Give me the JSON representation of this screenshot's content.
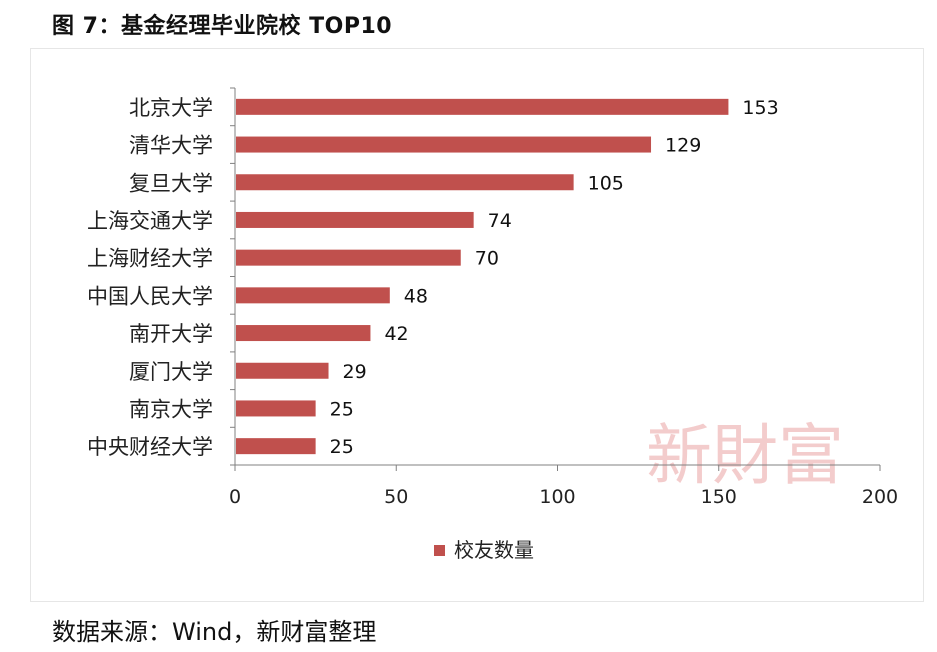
{
  "title": "图 7：基金经理毕业院校 TOP10",
  "source": "数据来源：Wind，新财富整理",
  "watermark": "新財富",
  "chart_data": {
    "type": "bar",
    "orientation": "horizontal",
    "categories": [
      "北京大学",
      "清华大学",
      "复旦大学",
      "上海交通大学",
      "上海财经大学",
      "中国人民大学",
      "南开大学",
      "厦门大学",
      "南京大学",
      "中央财经大学"
    ],
    "series": [
      {
        "name": "校友数量",
        "values": [
          153,
          129,
          105,
          74,
          70,
          48,
          42,
          29,
          25,
          25
        ]
      }
    ],
    "xlim": [
      0,
      200
    ],
    "xticks": [
      0,
      50,
      100,
      150,
      200
    ],
    "grid": false,
    "legend": "bottom",
    "bar_color": "#c0504d",
    "watermark_color": "#f2c4c4"
  }
}
